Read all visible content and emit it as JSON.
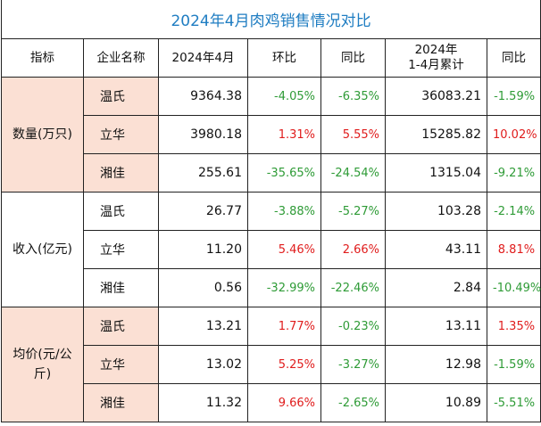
{
  "title": "2024年4月肉鸡销售情况对比",
  "header": [
    "指标",
    "企业名称",
    "2024年4月",
    "环比",
    "同比",
    [
      "2024年",
      "1-4月累计"
    ],
    "同比"
  ],
  "groups": [
    {
      "label": "数量(万只)",
      "rows": [
        {
          "company": "温氏",
          "cells": [
            "9364.38",
            "-4.05%",
            "-6.35%",
            "36083.21",
            "-1.59%"
          ]
        },
        {
          "company": "立华",
          "cells": [
            "3980.18",
            "1.31%",
            "5.55%",
            "15285.82",
            "10.02%"
          ]
        },
        {
          "company": "湘佳",
          "cells": [
            "255.61",
            "-35.65%",
            "-24.54%",
            "1315.04",
            "-9.21%"
          ]
        }
      ]
    },
    {
      "label": "收入(亿元)",
      "rows": [
        {
          "company": "温氏",
          "cells": [
            "26.77",
            "-3.88%",
            "-5.27%",
            "103.28",
            "-2.14%"
          ]
        },
        {
          "company": "立华",
          "cells": [
            "11.20",
            "5.46%",
            "2.66%",
            "43.11",
            "8.81%"
          ]
        },
        {
          "company": "湘佳",
          "cells": [
            "0.56",
            "-32.99%",
            "-22.46%",
            "2.84",
            "-10.49%"
          ]
        }
      ]
    },
    {
      "label": "均价(元/公斤)",
      "rows": [
        {
          "company": "温氏",
          "cells": [
            "13.21",
            "1.77%",
            "-0.23%",
            "13.11",
            "1.35%"
          ]
        },
        {
          "company": "立华",
          "cells": [
            "13.02",
            "5.25%",
            "-3.27%",
            "12.98",
            "-1.59%"
          ]
        },
        {
          "company": "湘佳",
          "cells": [
            "11.32",
            "9.66%",
            "-2.65%",
            "10.89",
            "-5.51%"
          ]
        }
      ]
    }
  ]
}
